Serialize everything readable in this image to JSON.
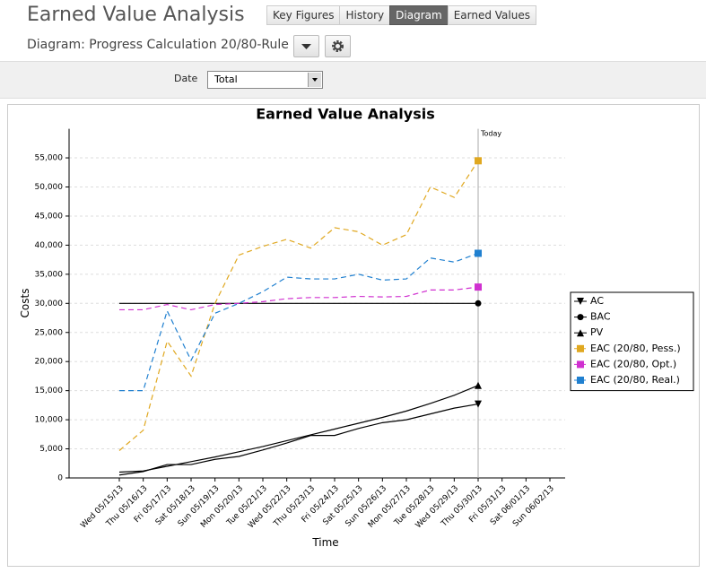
{
  "header": {
    "title": "Earned Value Analysis",
    "tabs": [
      "Key Figures",
      "History",
      "Diagram",
      "Earned Values"
    ],
    "active_tab": 2,
    "subtitle": "Diagram: Progress Calculation 20/80-Rule"
  },
  "filter": {
    "label": "Date",
    "value": "Total"
  },
  "chart_data": {
    "type": "line",
    "title": "Earned Value Analysis",
    "x_label": "Time",
    "y_label": "Costs",
    "categories": [
      "Wed 05/15/13",
      "Thu 05/16/13",
      "Fri 05/17/13",
      "Sat 05/18/13",
      "Sun 05/19/13",
      "Mon 05/20/13",
      "Tue 05/21/13",
      "Wed 05/22/13",
      "Thu 05/23/13",
      "Fri 05/24/13",
      "Sat 05/25/13",
      "Sun 05/26/13",
      "Mon 05/27/13",
      "Tue 05/28/13",
      "Wed 05/29/13",
      "Thu 05/30/13",
      "Fri 05/31/13",
      "Sat 06/01/13",
      "Sun 06/02/13"
    ],
    "today": "Thu 05/30/13",
    "today_label": "Today",
    "series": [
      {
        "name": "AC",
        "color": "#000000",
        "dashed": false,
        "marker": "triangle-down",
        "values": [
          500,
          1100,
          2300,
          2300,
          3200,
          3700,
          4800,
          6000,
          7300,
          7300,
          8500,
          9500,
          10000,
          11000,
          12000,
          12700,
          null,
          null,
          null
        ]
      },
      {
        "name": "BAC",
        "color": "#000000",
        "dashed": false,
        "marker": "circle",
        "values": [
          30000,
          30000,
          30000,
          30000,
          30000,
          30000,
          30000,
          30000,
          30000,
          30000,
          30000,
          30000,
          30000,
          30000,
          30000,
          30000,
          null,
          null,
          null
        ]
      },
      {
        "name": "PV",
        "color": "#000000",
        "dashed": false,
        "marker": "triangle-up",
        "values": [
          1000,
          1200,
          2000,
          2800,
          3600,
          4500,
          5400,
          6400,
          7400,
          8400,
          9400,
          10400,
          11500,
          12800,
          14200,
          15900,
          null,
          null,
          null
        ]
      },
      {
        "name": "EAC (20/80, Pess.)",
        "color": "#e0a820",
        "dashed": true,
        "marker": "square",
        "values": [
          4700,
          8200,
          23500,
          17500,
          30000,
          38300,
          39800,
          41000,
          39500,
          43000,
          42300,
          40000,
          41800,
          50000,
          48200,
          54500,
          null,
          null,
          null
        ]
      },
      {
        "name": "EAC (20/80, Opt.)",
        "color": "#d030d0",
        "dashed": true,
        "marker": "square",
        "values": [
          28900,
          28900,
          29800,
          28900,
          29800,
          30000,
          30300,
          30800,
          31000,
          31000,
          31200,
          31100,
          31200,
          32300,
          32300,
          32800,
          null,
          null,
          null
        ]
      },
      {
        "name": "EAC (20/80, Real.)",
        "color": "#2080d0",
        "dashed": true,
        "marker": "square",
        "values": [
          15000,
          15000,
          28700,
          20200,
          28300,
          30000,
          32000,
          34500,
          34200,
          34200,
          35000,
          34000,
          34200,
          37800,
          37100,
          38600,
          null,
          null,
          null
        ]
      }
    ],
    "ylim": [
      0,
      60000
    ],
    "yticks": [
      0,
      {
        "value": 5000,
        "label": "5,000"
      },
      {
        "value": 10000,
        "label": "10,000"
      },
      {
        "value": 15000,
        "label": "15,000"
      },
      {
        "value": 20000,
        "label": "20,000"
      },
      {
        "value": 25000,
        "label": "25,000"
      },
      {
        "value": 30000,
        "label": "30,000"
      },
      {
        "value": 35000,
        "label": "35,000"
      },
      {
        "value": 40000,
        "label": "40,000"
      },
      {
        "value": 45000,
        "label": "45,000"
      },
      {
        "value": 50000,
        "label": "50,000"
      },
      {
        "value": 55000,
        "label": "55,000"
      }
    ],
    "grid": true,
    "legend": "right"
  }
}
